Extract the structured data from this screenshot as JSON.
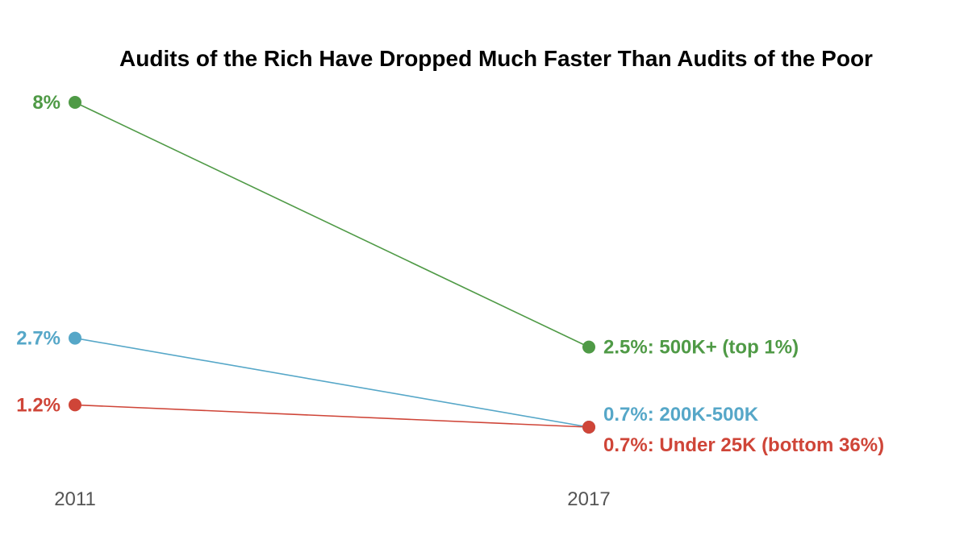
{
  "chart_data": {
    "type": "line",
    "title": "Audits of the Rich Have Dropped Much Faster Than Audits of the Poor",
    "xlabel": "",
    "ylabel": "",
    "x": [
      "2011",
      "2017"
    ],
    "ylim": [
      0,
      8.5
    ],
    "grid": false,
    "legend": "none",
    "series": [
      {
        "key": "top1",
        "name": "500K+ (top 1%)",
        "values": [
          8,
          2.5
        ],
        "color": "#4f9a46",
        "start_label": "8%",
        "end_label": "2.5%: 500K+ (top 1%)"
      },
      {
        "key": "mid",
        "name": "200K-500K",
        "values": [
          2.7,
          0.7
        ],
        "color": "#56a7c8",
        "start_label": "2.7%",
        "end_label": "0.7%: 200K-500K"
      },
      {
        "key": "bottom",
        "name": "Under 25K (bottom 36%)",
        "values": [
          1.2,
          0.7
        ],
        "color": "#cf4538",
        "start_label": "1.2%",
        "end_label": "0.7%: Under 25K (bottom 36%)"
      }
    ]
  }
}
